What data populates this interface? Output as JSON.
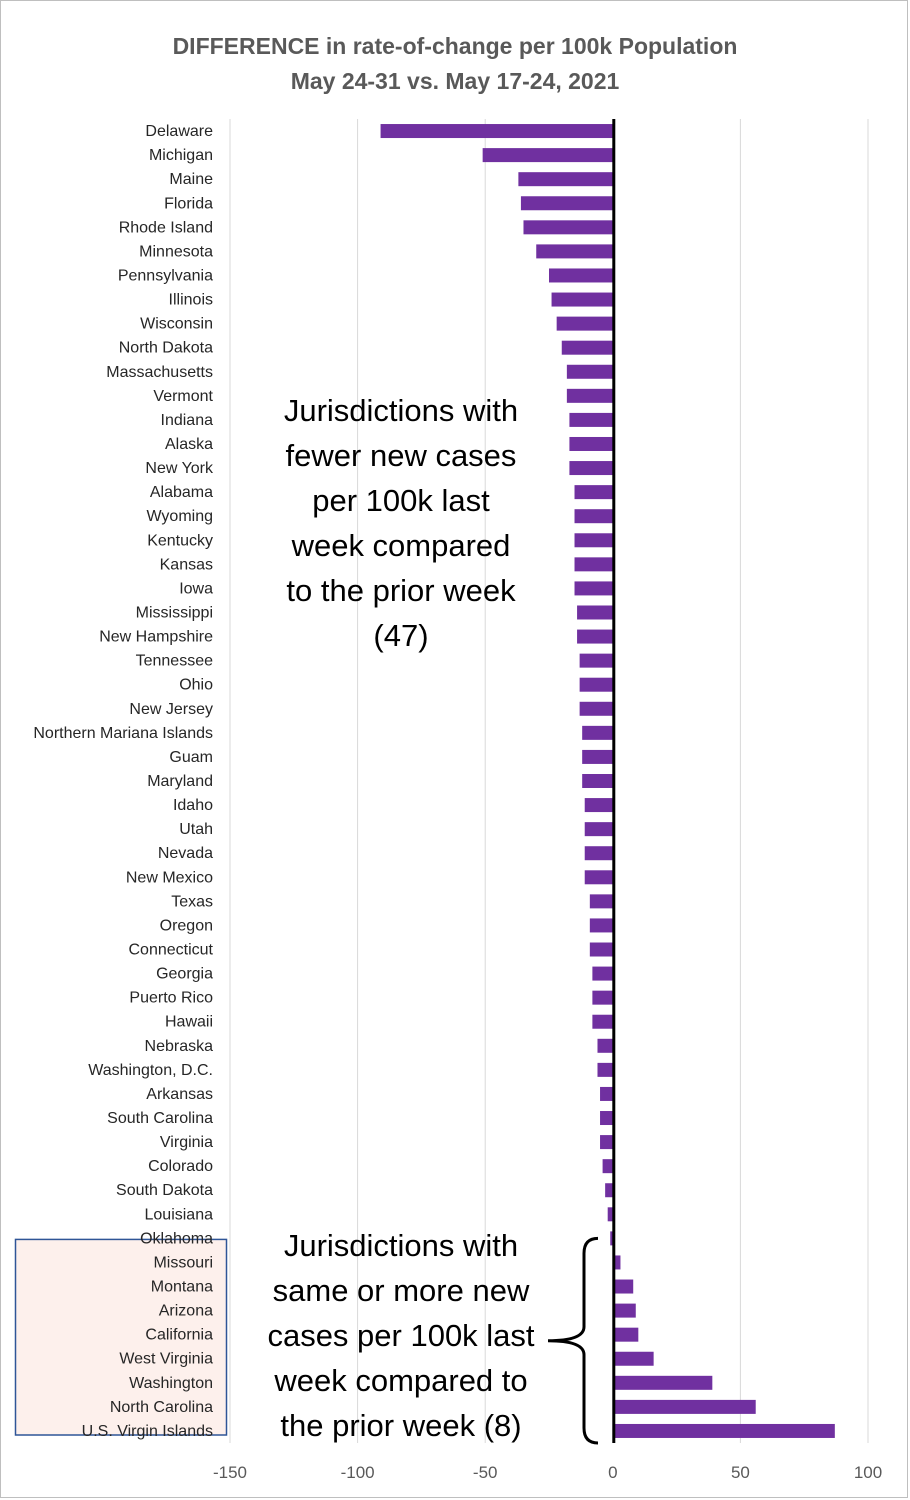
{
  "chart_data": {
    "type": "bar",
    "orientation": "horizontal",
    "title": "DIFFERENCE  in rate-of-change per 100k Population",
    "subtitle": "May 24-31 vs. May 17-24, 2021",
    "xlabel": "",
    "ylabel": "",
    "xlim": [
      -150,
      100
    ],
    "x_ticks": [
      -150,
      -100,
      -50,
      0,
      50,
      100
    ],
    "grid": true,
    "bar_color": "#7030a0",
    "categories": [
      "Delaware",
      "Michigan",
      "Maine",
      "Florida",
      "Rhode Island",
      "Minnesota",
      "Pennsylvania",
      "Illinois",
      "Wisconsin",
      "North Dakota",
      "Massachusetts",
      "Vermont",
      "Indiana",
      "Alaska",
      "New York",
      "Alabama",
      "Wyoming",
      "Kentucky",
      "Kansas",
      "Iowa",
      "Mississippi",
      "New Hampshire",
      "Tennessee",
      "Ohio",
      "New Jersey",
      "Northern Mariana Islands",
      "Guam",
      "Maryland",
      "Idaho",
      "Utah",
      "Nevada",
      "New Mexico",
      "Texas",
      "Oregon",
      "Connecticut",
      "Georgia",
      "Puerto Rico",
      "Hawaii",
      "Nebraska",
      "Washington, D.C.",
      "Arkansas",
      "South Carolina",
      "Virginia",
      "Colorado",
      "South Dakota",
      "Louisiana",
      "Oklahoma",
      "Missouri",
      "Montana",
      "Arizona",
      "California",
      "West Virginia",
      "Washington",
      "North Carolina",
      "U.S. Virgin Islands"
    ],
    "values": [
      -91,
      -51,
      -37,
      -36,
      -35,
      -30,
      -25,
      -24,
      -22,
      -20,
      -18,
      -18,
      -17,
      -17,
      -17,
      -15,
      -15,
      -15,
      -15,
      -15,
      -14,
      -14,
      -13,
      -13,
      -13,
      -12,
      -12,
      -12,
      -11,
      -11,
      -11,
      -11,
      -9,
      -9,
      -9,
      -8,
      -8,
      -8,
      -6,
      -6,
      -5,
      -5,
      -5,
      -4,
      -3,
      -2,
      -1,
      3,
      8,
      9,
      10,
      16,
      39,
      56,
      87
    ],
    "highlight_categories": [
      "Missouri",
      "Montana",
      "Arizona",
      "California",
      "West Virginia",
      "Washington",
      "North Carolina",
      "U.S. Virgin Islands"
    ],
    "highlight_color": "#fdf0ec",
    "highlight_border": "#2f5597",
    "annotations": [
      "Jurisdictions with fewer new cases per 100k last week compared to the prior week (47)",
      "Jurisdictions with same or more new cases per 100k last week compared to the prior week (8)"
    ]
  },
  "annotation_neg_lines": [
    "Jurisdictions with",
    "fewer new cases",
    "per 100k last",
    "week compared",
    "to the prior week",
    "(47)"
  ],
  "annotation_pos_lines": [
    "Jurisdictions with",
    "same or more new",
    "cases per 100k last",
    "week compared to",
    "the prior week (8)"
  ]
}
